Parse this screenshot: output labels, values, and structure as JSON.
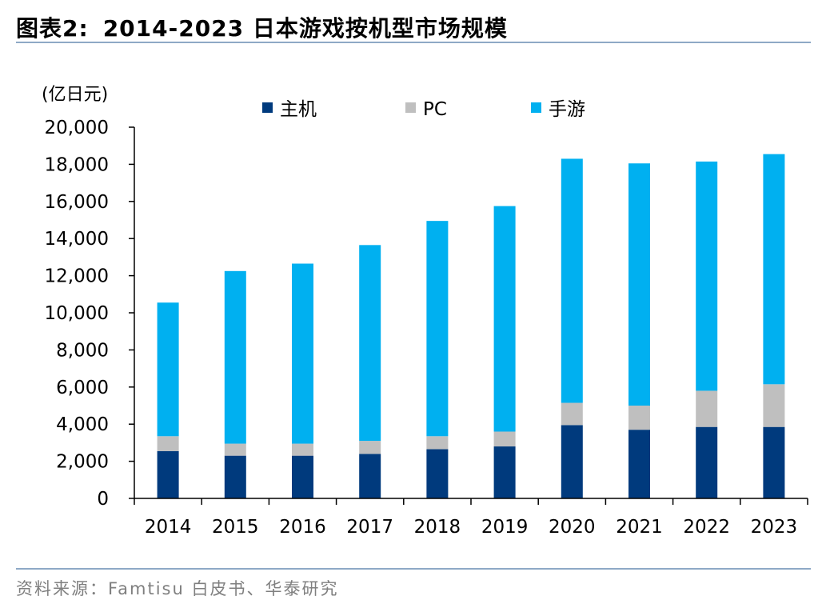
{
  "figure": {
    "label": "图表2:",
    "title": "2014-2023 日本游戏按机型市场规模",
    "source": "资料来源：Famtisu 白皮书、华泰研究"
  },
  "chart_data": {
    "type": "bar",
    "stacked": true,
    "unit_label": "(亿日元)",
    "categories": [
      "2014",
      "2015",
      "2016",
      "2017",
      "2018",
      "2019",
      "2020",
      "2021",
      "2022",
      "2023"
    ],
    "series": [
      {
        "name": "主机",
        "color": "#003a7d",
        "values": [
          2550,
          2300,
          2300,
          2400,
          2650,
          2800,
          3950,
          3700,
          3850,
          3850
        ]
      },
      {
        "name": "PC",
        "color": "#bfbfbf",
        "values": [
          800,
          650,
          650,
          700,
          700,
          800,
          1200,
          1300,
          1950,
          2300
        ]
      },
      {
        "name": "手游",
        "color": "#00b0f0",
        "values": [
          7200,
          9300,
          9700,
          10550,
          11600,
          12150,
          13150,
          13050,
          12350,
          12400
        ]
      }
    ],
    "ylim": [
      0,
      20000
    ],
    "yticks": [
      0,
      2000,
      4000,
      6000,
      8000,
      10000,
      12000,
      14000,
      16000,
      18000,
      20000
    ],
    "ytick_labels": [
      "0",
      "2,000",
      "4,000",
      "6,000",
      "8,000",
      "10,000",
      "12,000",
      "14,000",
      "16,000",
      "18,000",
      "20,000"
    ],
    "grid": false,
    "legend": "top-center"
  }
}
